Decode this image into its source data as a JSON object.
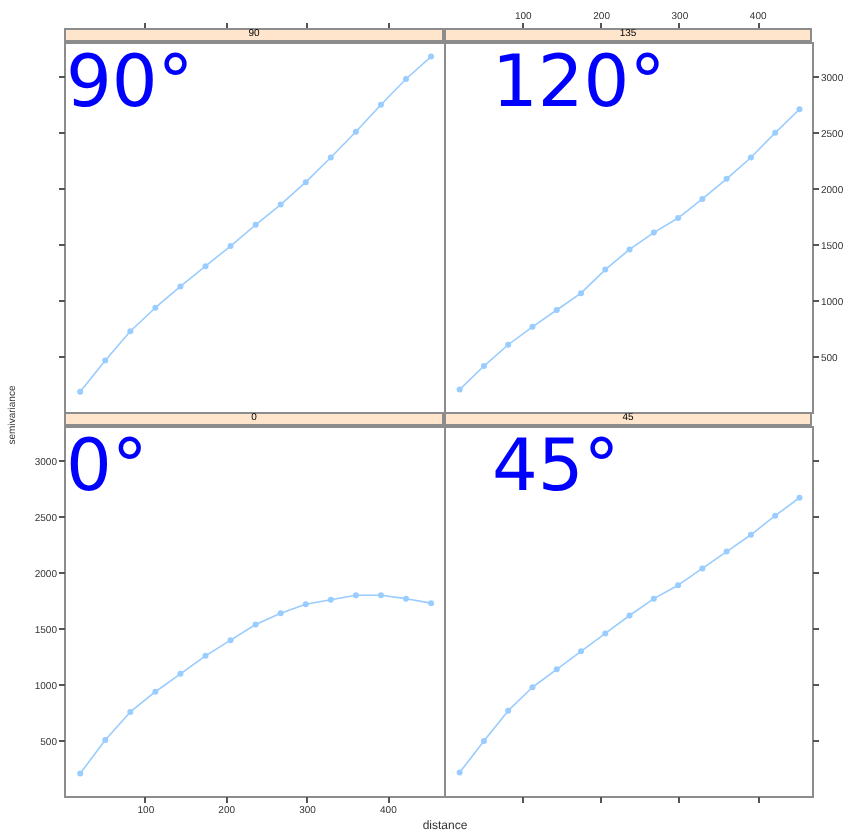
{
  "chart_data": [
    {
      "type": "line",
      "title": "90",
      "annotations": [
        "90°"
      ],
      "x": [
        20,
        51,
        82,
        113,
        144,
        175,
        206,
        237,
        268,
        299,
        330,
        361,
        392,
        423,
        454
      ],
      "series": [
        {
          "color": "#99ccff",
          "values": [
            180,
            460,
            720,
            930,
            1120,
            1300,
            1480,
            1670,
            1850,
            2050,
            2270,
            2500,
            2740,
            2970,
            3170
          ]
        }
      ],
      "xlim": [
        0,
        470
      ],
      "ylim": [
        0,
        3300
      ],
      "xticks": [
        100,
        200,
        300,
        400
      ],
      "yticks": [
        500,
        1000,
        1500,
        2000,
        2500,
        3000
      ],
      "marker": "circle",
      "line_style": "solid",
      "tick_labels": false
    },
    {
      "type": "line",
      "title": "135",
      "annotations": [
        "120°"
      ],
      "x": [
        20,
        51,
        82,
        113,
        144,
        175,
        206,
        237,
        268,
        299,
        330,
        361,
        392,
        423,
        454
      ],
      "series": [
        {
          "color": "#99ccff",
          "values": [
            200,
            410,
            600,
            760,
            910,
            1060,
            1270,
            1450,
            1600,
            1730,
            1900,
            2080,
            2270,
            2490,
            2700
          ]
        }
      ],
      "xlim": [
        0,
        470
      ],
      "ylim": [
        0,
        3300
      ],
      "xticks": [
        100,
        200,
        300,
        400
      ],
      "yticks": [
        500,
        1000,
        1500,
        2000,
        2500,
        3000
      ],
      "marker": "circle",
      "line_style": "solid"
    },
    {
      "type": "line",
      "title": "0",
      "annotations": [
        "0°"
      ],
      "xlabel": "distance",
      "ylabel": "semivariance",
      "x": [
        20,
        51,
        82,
        113,
        144,
        175,
        206,
        237,
        268,
        299,
        330,
        361,
        392,
        423,
        454
      ],
      "series": [
        {
          "color": "#99ccff",
          "values": [
            200,
            500,
            750,
            930,
            1090,
            1250,
            1390,
            1530,
            1630,
            1710,
            1750,
            1790,
            1790,
            1760,
            1720
          ]
        }
      ],
      "xlim": [
        0,
        470
      ],
      "ylim": [
        0,
        3300
      ],
      "xticks": [
        100,
        200,
        300,
        400
      ],
      "yticks": [
        500,
        1000,
        1500,
        2000,
        2500,
        3000
      ],
      "marker": "circle",
      "line_style": "solid"
    },
    {
      "type": "line",
      "title": "45",
      "annotations": [
        "45°"
      ],
      "x": [
        20,
        51,
        82,
        113,
        144,
        175,
        206,
        237,
        268,
        299,
        330,
        361,
        392,
        423,
        454
      ],
      "series": [
        {
          "color": "#99ccff",
          "values": [
            210,
            490,
            760,
            970,
            1130,
            1290,
            1450,
            1610,
            1760,
            1880,
            2030,
            2180,
            2330,
            2500,
            2660
          ]
        }
      ],
      "xlim": [
        0,
        470
      ],
      "ylim": [
        0,
        3300
      ],
      "xticks": [
        100,
        200,
        300,
        400
      ],
      "yticks": [
        500,
        1000,
        1500,
        2000,
        2500,
        3000
      ],
      "marker": "circle",
      "line_style": "solid",
      "tick_labels": false
    }
  ]
}
